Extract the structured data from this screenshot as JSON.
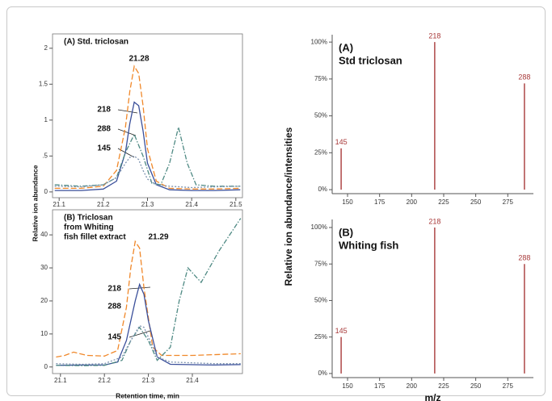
{
  "chart_data": [
    {
      "type": "line",
      "title": "(A) Std. triclosan",
      "ylabel": "Relative ion abundance",
      "xlim": [
        21.085,
        21.515
      ],
      "ylim": [
        -0.08,
        2.2
      ],
      "xticks": [
        21.1,
        21.2,
        21.3,
        21.4,
        21.5
      ],
      "yticks": [
        0,
        {
          "value": 0.5,
          "label": ".5"
        },
        1,
        1.5,
        2
      ],
      "annotations": [
        "21.28",
        "218",
        "288",
        "145"
      ],
      "series": [
        {
          "color": "#f0882a",
          "linestyle": "dashed",
          "x": [
            21.09,
            21.15,
            21.2,
            21.23,
            21.25,
            21.26,
            21.27,
            21.28,
            21.29,
            21.3,
            21.32,
            21.35,
            21.4,
            21.45,
            21.51
          ],
          "values": [
            0.05,
            0.05,
            0.08,
            0.3,
            0.9,
            1.4,
            1.75,
            1.65,
            1.2,
            0.6,
            0.15,
            0.05,
            0.04,
            0.04,
            0.05
          ]
        },
        {
          "color": "#3a4f9a",
          "linestyle": "solid",
          "x": [
            21.09,
            21.15,
            21.2,
            21.23,
            21.25,
            21.26,
            21.27,
            21.28,
            21.29,
            21.3,
            21.32,
            21.35,
            21.4,
            21.45,
            21.51
          ],
          "values": [
            0.02,
            0.02,
            0.04,
            0.15,
            0.55,
            0.95,
            1.25,
            1.2,
            0.85,
            0.4,
            0.1,
            0.03,
            0.02,
            0.02,
            0.03
          ]
        },
        {
          "color": "#4f8a84",
          "linestyle": "dashdot",
          "x": [
            21.09,
            21.15,
            21.2,
            21.23,
            21.25,
            21.27,
            21.29,
            21.31,
            21.33,
            21.35,
            21.37,
            21.39,
            21.41,
            21.45,
            21.51
          ],
          "values": [
            0.1,
            0.08,
            0.1,
            0.2,
            0.55,
            0.8,
            0.5,
            0.12,
            0.1,
            0.4,
            0.9,
            0.4,
            0.1,
            0.08,
            0.08
          ]
        },
        {
          "color": "#7d93b0",
          "linestyle": "dotted",
          "x": [
            21.09,
            21.15,
            21.2,
            21.23,
            21.25,
            21.26,
            21.27,
            21.28,
            21.29,
            21.3,
            21.32,
            21.35,
            21.4,
            21.45,
            21.51
          ],
          "values": [
            0.08,
            0.07,
            0.1,
            0.2,
            0.4,
            0.48,
            0.5,
            0.45,
            0.3,
            0.18,
            0.1,
            0.08,
            0.06,
            0.07,
            0.08
          ]
        }
      ]
    },
    {
      "type": "line",
      "title": [
        "(B) Triclosan",
        "from Whiting",
        "fish fillet extract"
      ],
      "xlabel": "Retention time, min",
      "xlim": [
        21.082,
        21.514
      ],
      "ylim": [
        -2,
        47.6
      ],
      "xticks": [
        21.1,
        21.2,
        21.3,
        21.4
      ],
      "yticks": [
        0,
        10,
        20,
        30,
        40
      ],
      "annotations": [
        "21.29",
        "218",
        "288",
        "145"
      ],
      "series": [
        {
          "color": "#f0882a",
          "linestyle": "dashed",
          "x": [
            21.09,
            21.11,
            21.13,
            21.16,
            21.2,
            21.23,
            21.25,
            21.26,
            21.27,
            21.28,
            21.29,
            21.31,
            21.33,
            21.4,
            21.51
          ],
          "values": [
            3,
            3.5,
            4.5,
            3.5,
            3.3,
            5,
            18,
            30,
            38,
            36,
            24,
            6,
            3.5,
            3.5,
            4
          ]
        },
        {
          "color": "#3a4f9a",
          "linestyle": "solid",
          "x": [
            21.09,
            21.15,
            21.2,
            21.23,
            21.25,
            21.27,
            21.28,
            21.29,
            21.3,
            21.32,
            21.35,
            21.45,
            21.51
          ],
          "values": [
            0.5,
            0.6,
            0.6,
            1.5,
            8,
            20,
            25,
            22,
            14,
            3,
            0.8,
            0.6,
            0.7
          ]
        },
        {
          "color": "#4f8a84",
          "linestyle": "dashdot",
          "x": [
            21.09,
            21.15,
            21.2,
            21.24,
            21.26,
            21.28,
            21.3,
            21.32,
            21.35,
            21.37,
            21.39,
            21.42,
            21.46,
            21.51
          ],
          "values": [
            0.5,
            0.4,
            0.5,
            2,
            8,
            12,
            8,
            2,
            6,
            20,
            30,
            25.6,
            35,
            45
          ]
        },
        {
          "color": "#7d93b0",
          "linestyle": "dotted",
          "x": [
            21.09,
            21.15,
            21.2,
            21.24,
            21.26,
            21.28,
            21.29,
            21.3,
            21.32,
            21.35,
            21.45,
            21.51
          ],
          "values": [
            1,
            0.8,
            1,
            3,
            8,
            12.5,
            12,
            9,
            3,
            1.5,
            1,
            1
          ]
        }
      ]
    },
    {
      "type": "stick",
      "title": [
        "(A)",
        "Std triclosan"
      ],
      "ylabel": "Relative ion abundance/intensities",
      "xlim": [
        138,
        295
      ],
      "ylim": [
        -2.7,
        105
      ],
      "xticks": [
        150,
        175,
        200,
        225,
        250,
        275
      ],
      "yticks": [
        {
          "value": 0,
          "label": "0%"
        },
        {
          "value": 25,
          "label": "25%"
        },
        {
          "value": 50,
          "label": "50%"
        },
        {
          "value": 75,
          "label": "75%"
        },
        {
          "value": 100,
          "label": "100%"
        }
      ],
      "color": "#a83a3a",
      "x": [
        145,
        218,
        288
      ],
      "values": [
        28,
        100,
        72
      ]
    },
    {
      "type": "stick",
      "title": [
        "(B)",
        "Whiting fish"
      ],
      "xlabel": "m/z",
      "xlim": [
        138,
        295
      ],
      "ylim": [
        -2.8,
        105.5
      ],
      "xticks": [
        150,
        175,
        200,
        225,
        250,
        275
      ],
      "yticks": [
        {
          "value": 0,
          "label": "0%"
        },
        {
          "value": 25,
          "label": "25%"
        },
        {
          "value": 50,
          "label": "50%"
        },
        {
          "value": 75,
          "label": "75%"
        },
        {
          "value": 100,
          "label": "100%"
        }
      ],
      "color": "#a83a3a",
      "x": [
        145,
        218,
        288
      ],
      "values": [
        25,
        100,
        75
      ]
    }
  ]
}
